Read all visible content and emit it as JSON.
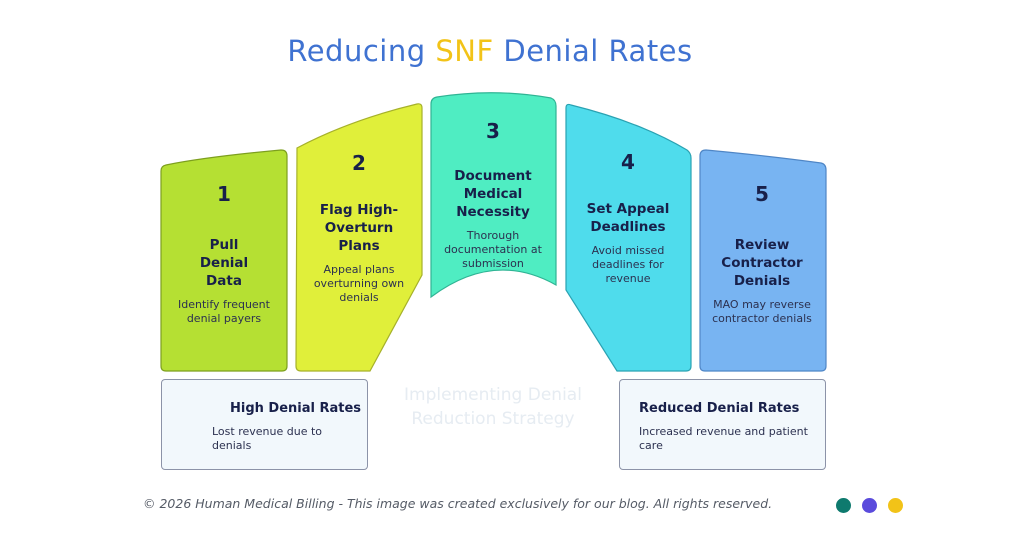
{
  "title": {
    "prefix": "Reducing",
    "highlight": "SNF",
    "suffix": "Denial Rates"
  },
  "steps": [
    {
      "number": "1",
      "heading": "Pull Denial Data",
      "description": "Identify frequent denial payers",
      "color": "#b5e033"
    },
    {
      "number": "2",
      "heading": "Flag High-Overturn Plans",
      "description": "Appeal plans overturning own denials",
      "color": "#e0ef3a"
    },
    {
      "number": "3",
      "heading": "Document Medical Necessity",
      "description": "Thorough documentation at submission",
      "color": "#4fedc2"
    },
    {
      "number": "4",
      "heading": "Set Appeal Deadlines",
      "description": "Avoid missed deadlines for revenue",
      "color": "#4fdcec"
    },
    {
      "number": "5",
      "heading": "Review Contractor Denials",
      "description": "MAO may reverse contractor denials",
      "color": "#78b4f2"
    }
  ],
  "left_box": {
    "title": "High Denial Rates",
    "description": "Lost revenue due to denials"
  },
  "right_box": {
    "title": "Reduced Denial Rates",
    "description": "Increased revenue and patient care"
  },
  "ghost_text": "Implementing Denial Reduction Strategy",
  "footer": "© 2026 Human Medical Billing - This image was created exclusively for our blog. All rights reserved.",
  "dots": [
    "#0e7a6e",
    "#5a4bdc",
    "#f2c318"
  ]
}
